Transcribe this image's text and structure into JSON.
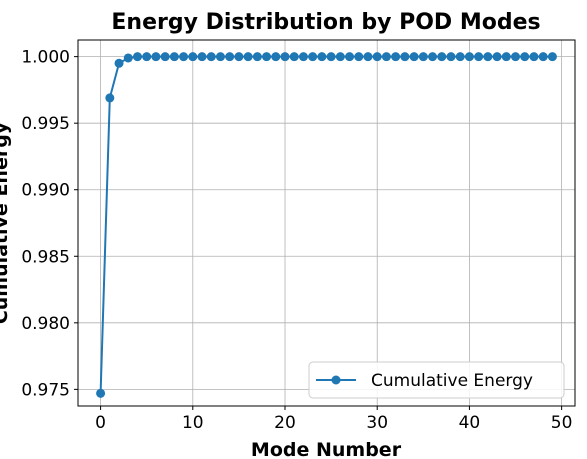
{
  "chart_data": {
    "type": "line",
    "title": "Energy Distribution by POD Modes",
    "xlabel": "Mode Number",
    "ylabel": "Cumulative Energy",
    "xlim": [
      -2.45,
      51.45
    ],
    "ylim": [
      0.97375,
      1.00125
    ],
    "xticks": [
      0,
      10,
      20,
      30,
      40,
      50
    ],
    "xtick_labels": [
      "0",
      "10",
      "20",
      "30",
      "40",
      "50"
    ],
    "yticks": [
      0.975,
      0.98,
      0.985,
      0.99,
      0.995,
      1.0
    ],
    "ytick_labels": [
      "0.975",
      "0.980",
      "0.985",
      "0.990",
      "0.995",
      "1.000"
    ],
    "grid": true,
    "legend_position": "lower-right",
    "series": [
      {
        "name": "Cumulative Energy",
        "color": "#1f77b4",
        "marker": "circle",
        "x": [
          0,
          1,
          2,
          3,
          4,
          5,
          6,
          7,
          8,
          9,
          10,
          11,
          12,
          13,
          14,
          15,
          16,
          17,
          18,
          19,
          20,
          21,
          22,
          23,
          24,
          25,
          26,
          27,
          28,
          29,
          30,
          31,
          32,
          33,
          34,
          35,
          36,
          37,
          38,
          39,
          40,
          41,
          42,
          43,
          44,
          45,
          46,
          47,
          48,
          49
        ],
        "y": [
          0.9747,
          0.9969,
          0.9995,
          0.9999,
          1.0,
          1.0,
          1.0,
          1.0,
          1.0,
          1.0,
          1.0,
          1.0,
          1.0,
          1.0,
          1.0,
          1.0,
          1.0,
          1.0,
          1.0,
          1.0,
          1.0,
          1.0,
          1.0,
          1.0,
          1.0,
          1.0,
          1.0,
          1.0,
          1.0,
          1.0,
          1.0,
          1.0,
          1.0,
          1.0,
          1.0,
          1.0,
          1.0,
          1.0,
          1.0,
          1.0,
          1.0,
          1.0,
          1.0,
          1.0,
          1.0,
          1.0,
          1.0,
          1.0,
          1.0,
          1.0
        ]
      }
    ]
  }
}
